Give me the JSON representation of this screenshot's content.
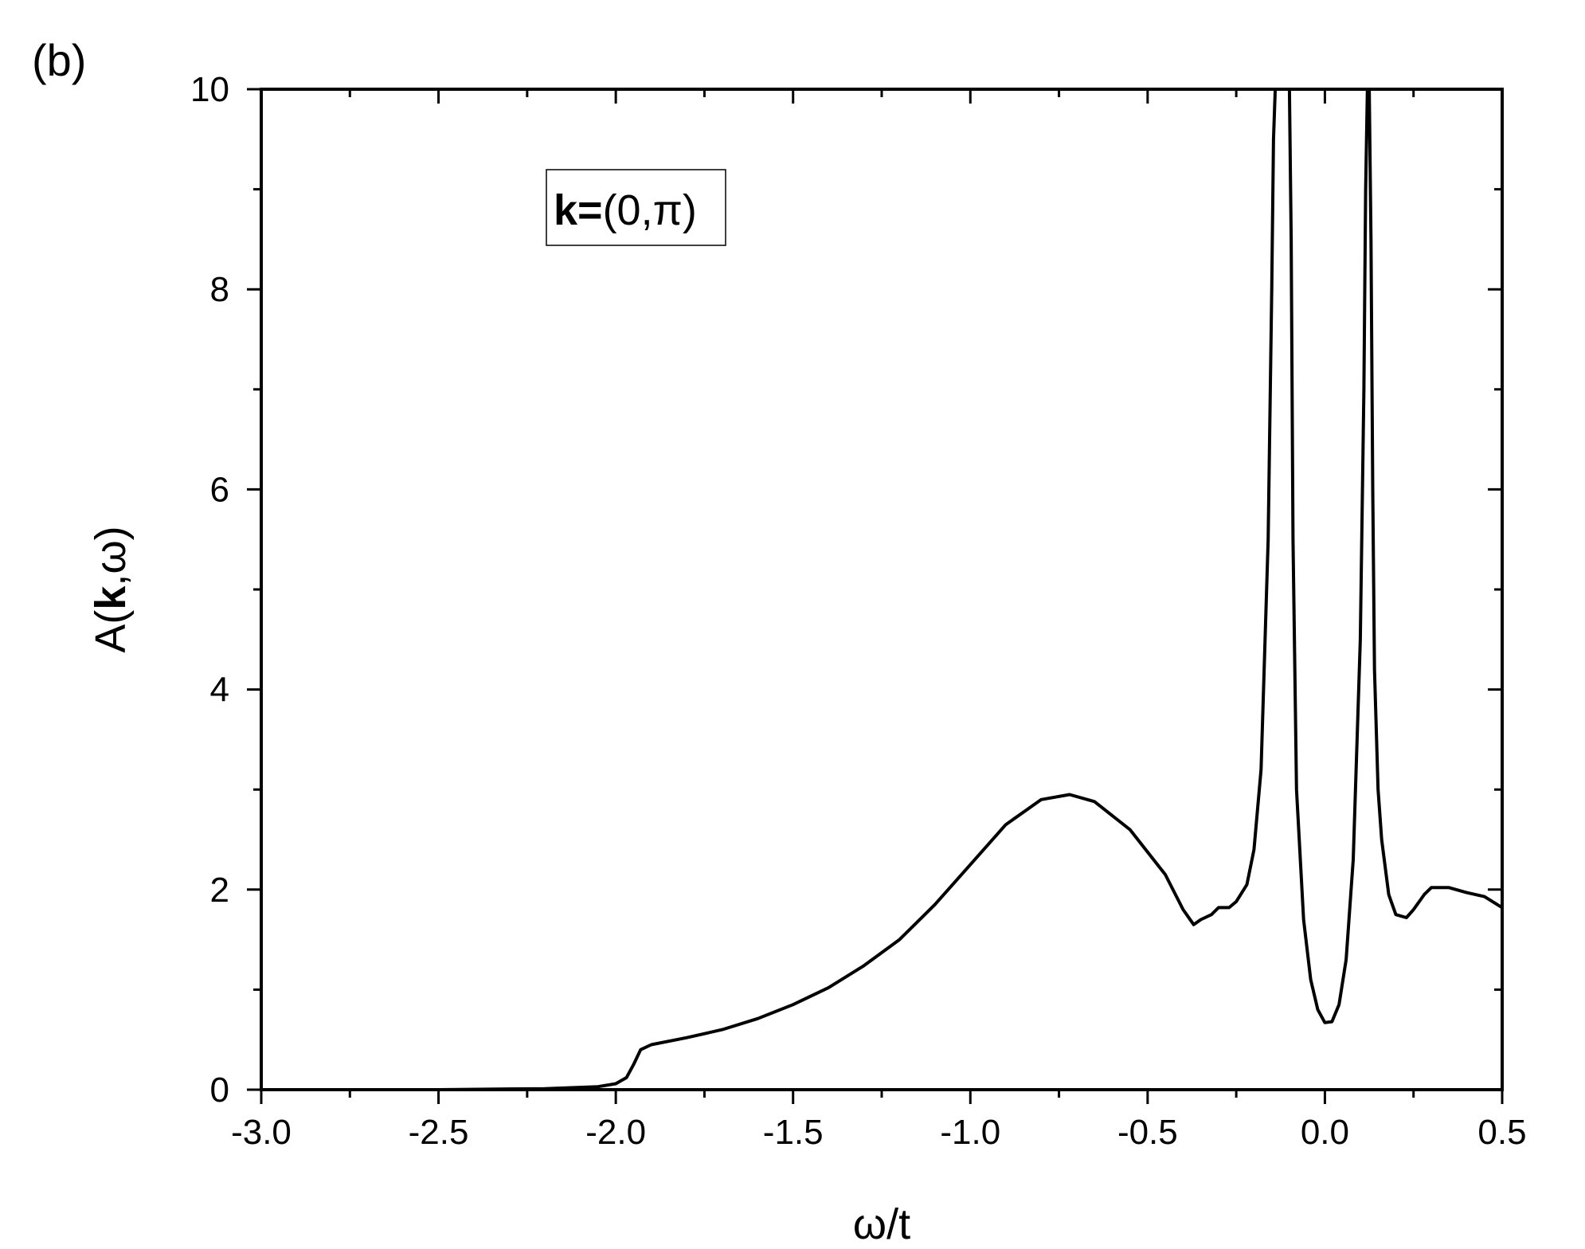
{
  "panel_label": "(b)",
  "chart_data": {
    "type": "line",
    "xlabel": "ω/t",
    "ylabel": {
      "prefix": "A(",
      "bold": "k",
      "suffix": ",ω)"
    },
    "annotation": {
      "bold": "k=",
      "normal": "(0,π)"
    },
    "xlim": [
      -3.0,
      0.5
    ],
    "ylim": [
      0,
      10
    ],
    "x_ticks": [
      -3.0,
      -2.5,
      -2.0,
      -1.5,
      -1.0,
      -0.5,
      0.0,
      0.5
    ],
    "x_tick_labels": [
      "-3.0",
      "-2.5",
      "-2.0",
      "-1.5",
      "-1.0",
      "-0.5",
      "0.0",
      "0.5"
    ],
    "y_ticks": [
      0,
      2,
      4,
      6,
      8,
      10
    ],
    "y_tick_labels": [
      "0",
      "2",
      "4",
      "6",
      "8",
      "10"
    ],
    "grid": false,
    "line_color": "#000000",
    "series": [
      {
        "x": [
          -3.0,
          -2.5,
          -2.2,
          -2.05,
          -2.0,
          -1.97,
          -1.95,
          -1.93,
          -1.9,
          -1.8,
          -1.7,
          -1.6,
          -1.5,
          -1.4,
          -1.3,
          -1.2,
          -1.1,
          -1.0,
          -0.9,
          -0.8,
          -0.72,
          -0.65,
          -0.55,
          -0.45,
          -0.4,
          -0.37,
          -0.35,
          -0.32,
          -0.3,
          -0.27,
          -0.25,
          -0.22,
          -0.2,
          -0.18,
          -0.16,
          -0.15,
          -0.145,
          -0.14,
          -0.1,
          -0.095,
          -0.09,
          -0.08,
          -0.06,
          -0.04,
          -0.02,
          0.0,
          0.02,
          0.04,
          0.06,
          0.08,
          0.1,
          0.11,
          0.115,
          0.12,
          0.125,
          0.13,
          0.135,
          0.14,
          0.15,
          0.16,
          0.18,
          0.2,
          0.23,
          0.25,
          0.28,
          0.3,
          0.35,
          0.4,
          0.45,
          0.5
        ],
        "y": [
          0.0,
          0.0,
          0.01,
          0.03,
          0.06,
          0.12,
          0.25,
          0.4,
          0.45,
          0.52,
          0.6,
          0.71,
          0.85,
          1.02,
          1.24,
          1.5,
          1.85,
          2.25,
          2.65,
          2.9,
          2.95,
          2.88,
          2.6,
          2.15,
          1.8,
          1.65,
          1.7,
          1.75,
          1.82,
          1.82,
          1.88,
          2.05,
          2.4,
          3.2,
          5.5,
          8.0,
          9.5,
          10.0,
          10.0,
          8.5,
          5.5,
          3.0,
          1.7,
          1.1,
          0.8,
          0.67,
          0.68,
          0.85,
          1.3,
          2.3,
          4.5,
          7.0,
          9.0,
          10.0,
          10.0,
          8.5,
          6.0,
          4.2,
          3.0,
          2.5,
          1.95,
          1.75,
          1.72,
          1.8,
          1.95,
          2.02,
          2.02,
          1.97,
          1.93,
          1.82
        ]
      }
    ]
  }
}
